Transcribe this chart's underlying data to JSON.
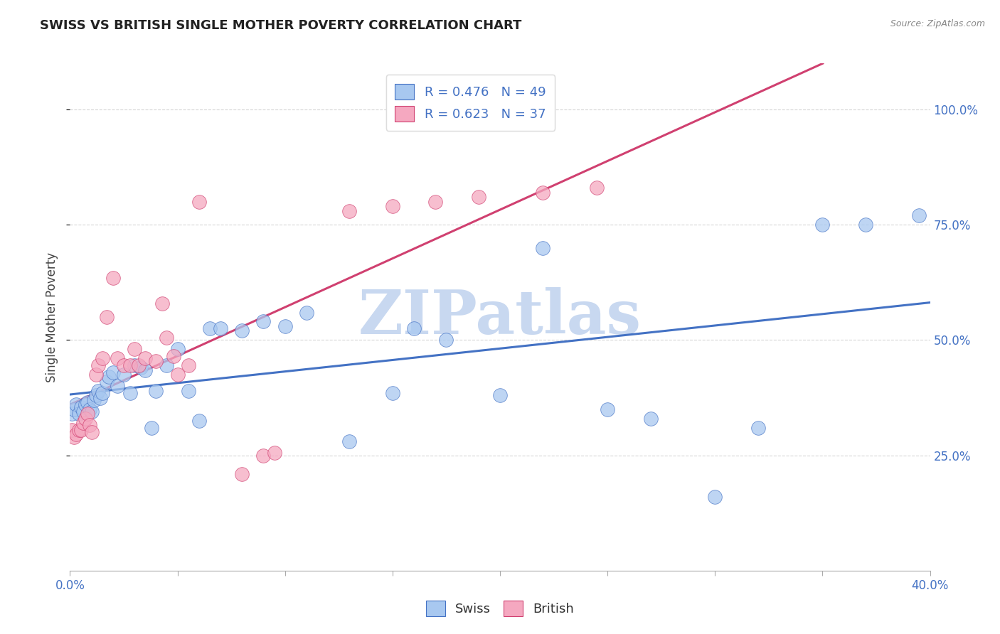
{
  "title": "SWISS VS BRITISH SINGLE MOTHER POVERTY CORRELATION CHART",
  "source": "Source: ZipAtlas.com",
  "ylabel": "Single Mother Poverty",
  "xlim": [
    0.0,
    0.4
  ],
  "ylim": [
    0.0,
    1.1
  ],
  "y_tick_positions": [
    0.25,
    0.5,
    0.75,
    1.0
  ],
  "y_tick_labels": [
    "25.0%",
    "50.0%",
    "75.0%",
    "100.0%"
  ],
  "swiss_R": 0.476,
  "swiss_N": 49,
  "british_R": 0.623,
  "british_N": 37,
  "swiss_color": "#A8C8F0",
  "british_color": "#F5A8C0",
  "swiss_line_color": "#4472C4",
  "british_line_color": "#D04070",
  "legend_text_color": "#4472C4",
  "watermark": "ZIPatlas",
  "watermark_color": "#C8D8F0",
  "swiss_x": [
    0.001,
    0.002,
    0.003,
    0.004,
    0.005,
    0.006,
    0.007,
    0.008,
    0.009,
    0.01,
    0.011,
    0.012,
    0.013,
    0.014,
    0.015,
    0.017,
    0.018,
    0.02,
    0.022,
    0.025,
    0.028,
    0.03,
    0.033,
    0.035,
    0.038,
    0.04,
    0.045,
    0.05,
    0.055,
    0.06,
    0.065,
    0.07,
    0.08,
    0.09,
    0.1,
    0.11,
    0.13,
    0.15,
    0.16,
    0.175,
    0.2,
    0.22,
    0.25,
    0.27,
    0.3,
    0.32,
    0.35,
    0.37,
    0.395
  ],
  "swiss_y": [
    0.34,
    0.35,
    0.36,
    0.34,
    0.355,
    0.345,
    0.36,
    0.365,
    0.35,
    0.345,
    0.37,
    0.38,
    0.39,
    0.375,
    0.385,
    0.41,
    0.42,
    0.43,
    0.4,
    0.425,
    0.385,
    0.445,
    0.44,
    0.435,
    0.31,
    0.39,
    0.445,
    0.48,
    0.39,
    0.325,
    0.525,
    0.525,
    0.52,
    0.54,
    0.53,
    0.56,
    0.28,
    0.385,
    0.525,
    0.5,
    0.38,
    0.7,
    0.35,
    0.33,
    0.16,
    0.31,
    0.75,
    0.75,
    0.77
  ],
  "british_x": [
    0.001,
    0.002,
    0.003,
    0.004,
    0.005,
    0.006,
    0.007,
    0.008,
    0.009,
    0.01,
    0.012,
    0.013,
    0.015,
    0.017,
    0.02,
    0.022,
    0.025,
    0.028,
    0.03,
    0.032,
    0.035,
    0.04,
    0.043,
    0.045,
    0.048,
    0.05,
    0.055,
    0.06,
    0.08,
    0.09,
    0.095,
    0.13,
    0.15,
    0.17,
    0.19,
    0.22,
    0.245
  ],
  "british_y": [
    0.305,
    0.29,
    0.295,
    0.305,
    0.305,
    0.32,
    0.33,
    0.34,
    0.315,
    0.3,
    0.425,
    0.445,
    0.46,
    0.55,
    0.635,
    0.46,
    0.445,
    0.445,
    0.48,
    0.445,
    0.46,
    0.455,
    0.58,
    0.505,
    0.465,
    0.425,
    0.445,
    0.8,
    0.21,
    0.25,
    0.255,
    0.78,
    0.79,
    0.8,
    0.81,
    0.82,
    0.83
  ]
}
